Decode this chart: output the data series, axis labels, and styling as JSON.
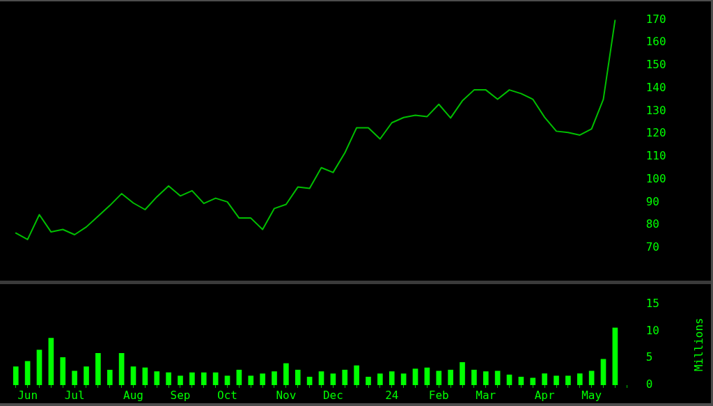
{
  "chart_data": [
    {
      "type": "line",
      "categories": [
        null,
        null,
        null,
        null,
        null,
        null,
        null,
        null,
        null,
        null,
        null,
        null,
        null,
        null,
        null,
        null,
        null,
        null,
        null,
        null,
        null,
        null,
        null,
        null,
        null,
        null,
        null,
        null,
        null,
        null,
        null,
        null,
        null,
        null,
        null,
        null,
        null,
        null,
        null,
        null,
        null,
        null,
        null,
        null,
        null,
        null,
        null,
        null,
        null,
        null,
        null,
        null,
        null
      ],
      "values": [
        76.5,
        73.7,
        84.6,
        77,
        78.1,
        75.8,
        79.2,
        83.9,
        88.6,
        93.8,
        89.7,
        86.8,
        92.4,
        97.2,
        92.8,
        95.1,
        89.5,
        91.8,
        90.2,
        83.1,
        83.1,
        78.1,
        87.3,
        89.1,
        96.7,
        96.1,
        105.2,
        103.1,
        111.7,
        122.7,
        122.7,
        117.8,
        124.9,
        127.2,
        128.2,
        127.6,
        133,
        127,
        134.5,
        139.3,
        139.3,
        135.2,
        139.3,
        137.7,
        135.2,
        127.3,
        121.2,
        120.6,
        119.5,
        122.2,
        135.2,
        170,
        null
      ],
      "color": "#00c000",
      "ylim": [
        70,
        170
      ],
      "yticks": [
        70,
        80,
        90,
        100,
        110,
        120,
        130,
        140,
        150,
        160,
        170
      ],
      "tick_labels": "y",
      "grid": false
    },
    {
      "type": "bar",
      "categories": [
        null,
        "Jun",
        null,
        null,
        null,
        "Jul",
        null,
        null,
        null,
        null,
        "Aug",
        null,
        null,
        null,
        "Sep",
        null,
        null,
        null,
        "Oct",
        null,
        null,
        null,
        null,
        "Nov",
        null,
        null,
        null,
        "Dec",
        null,
        null,
        null,
        null,
        "24",
        null,
        null,
        null,
        "Feb",
        null,
        null,
        null,
        "Mar",
        null,
        null,
        null,
        null,
        "Apr",
        null,
        null,
        null,
        "May",
        null,
        null,
        null
      ],
      "values": [
        3.4,
        4.4,
        6.5,
        8.7,
        5.1,
        2.6,
        3.4,
        5.9,
        2.8,
        5.9,
        3.4,
        3.2,
        2.5,
        2.3,
        1.7,
        2.3,
        2.3,
        2.3,
        1.7,
        2.8,
        1.7,
        2.1,
        2.5,
        4.0,
        2.8,
        1.5,
        2.5,
        2.1,
        2.8,
        3.6,
        1.5,
        2.1,
        2.5,
        2.1,
        3.0,
        3.2,
        2.6,
        2.8,
        4.2,
        2.8,
        2.5,
        2.6,
        1.9,
        1.5,
        1.3,
        2.1,
        1.7,
        1.7,
        2.1,
        2.6,
        4.8,
        10.6,
        null
      ],
      "color": "#00ff00",
      "ylim": [
        0,
        15
      ],
      "yticks": [
        0,
        5,
        10,
        15
      ],
      "ylabel": "Millions",
      "grid": false
    }
  ]
}
